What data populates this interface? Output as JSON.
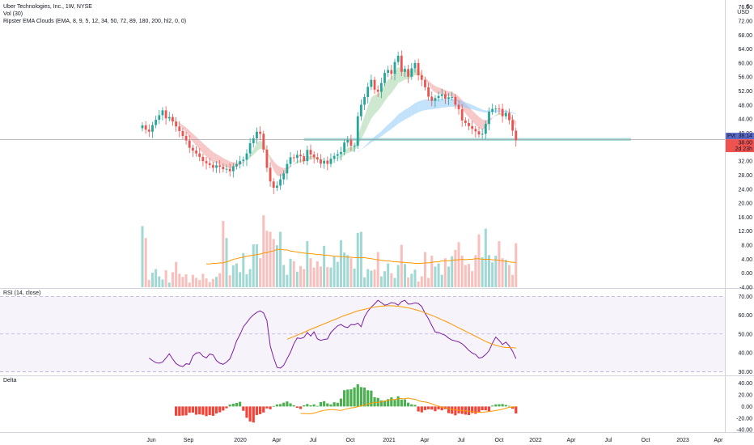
{
  "legend": {
    "title": "Uber Technologies, Inc., 1W, NYSE",
    "vol": "Vol (30)",
    "ema": "Ripster EMA Clouds (EMA, 8, 9, 5, 12, 34, 50, 72, 89, 180, 200, hl2, 0, 0)"
  },
  "currency": {
    "symbol": "€",
    "code": "USD"
  },
  "price_badges": {
    "pivot_label": "Pvt",
    "pivot_value": "38.14",
    "last_price": "38.00",
    "countdown": "2d 23h"
  },
  "colors": {
    "up": "#26a69a",
    "down": "#ef5350",
    "rsi_line": "#7b1fa2",
    "ma_line": "#ff9800",
    "pivot_badge": "#5b6ac9",
    "green_cloud": "#a5d6a7",
    "red_cloud": "#ef9a9a",
    "blue_cloud": "#90caf9"
  },
  "chart_data": [
    {
      "type": "candlestick",
      "title": "Uber Technologies, Inc., 1W, NYSE",
      "ylim": [
        -4,
        78
      ],
      "y_ticks": [
        "76.00",
        "72.00",
        "68.00",
        "64.00",
        "60.00",
        "56.00",
        "52.00",
        "48.00",
        "44.00",
        "40.00",
        "36.00",
        "32.00",
        "28.00",
        "24.00",
        "20.00",
        "16.00",
        "12.00",
        "8.00",
        "4.00",
        "0.00",
        "-4.00"
      ],
      "x_ticks": [
        "Jun",
        "Sep",
        "2020",
        "Apr",
        "Jul",
        "Oct",
        "2021",
        "Apr",
        "Jul",
        "Oct",
        "2022",
        "Apr",
        "Jul",
        "Oct",
        "2023",
        "Apr"
      ],
      "close": [
        42.2,
        41.0,
        40.4,
        42.3,
        43.8,
        45.1,
        46.5,
        44.2,
        44.6,
        43.3,
        41.9,
        40.6,
        39.2,
        37.9,
        35.8,
        35.0,
        34.2,
        33.2,
        32.0,
        31.4,
        30.9,
        30.1,
        30.8,
        30.4,
        29.7,
        29.8,
        29.1,
        30.5,
        31.1,
        32.0,
        32.4,
        34.2,
        37.1,
        38.5,
        40.4,
        39.8,
        35.3,
        30.1,
        26.2,
        24.4,
        25.0,
        26.8,
        28.5,
        31.2,
        33.1,
        32.9,
        33.8,
        33.4,
        32.0,
        35.2,
        33.9,
        33.1,
        32.5,
        31.3,
        32.1,
        31.2,
        32.7,
        33.5,
        34.0,
        34.6,
        37.3,
        38.0,
        36.4,
        36.4,
        44.8,
        48.1,
        50.3,
        53.2,
        55.2,
        52.4,
        51.8,
        54.3,
        57.2,
        58.0,
        56.9,
        60.3,
        62.1,
        57.5,
        58.3,
        56.1,
        58.5,
        60.0,
        56.5,
        55.2,
        53.1,
        50.4,
        49.2,
        50.0,
        50.6,
        51.1,
        49.8,
        50.2,
        50.3,
        48.1,
        46.8,
        43.6,
        42.9,
        42.0,
        41.2,
        40.5,
        39.6,
        39.8,
        42.6,
        46.1,
        46.9,
        47.0,
        46.9,
        44.8,
        45.8,
        43.7,
        40.7,
        38.0
      ],
      "volume": [
        11.8,
        9.5,
        1.4,
        2.8,
        3.5,
        2.1,
        1.5,
        3.3,
        0.9,
        2.9,
        4.9,
        2.6,
        2.0,
        2.5,
        0.9,
        2.4,
        1.8,
        1.4,
        2.6,
        1.7,
        1.0,
        1.6,
        2.0,
        2.7,
        12.8,
        9.5,
        2.3,
        4.2,
        4.6,
        2.9,
        6.6,
        2.5,
        3.5,
        8.3,
        8.3,
        5.6,
        13.9,
        10.9,
        10.7,
        9.3,
        8.1,
        10.7,
        4.3,
        2.4,
        5.5,
        5.0,
        3.0,
        4.1,
        3.5,
        8.9,
        5.6,
        3.8,
        5.0,
        4.0,
        8.0,
        3.9,
        3.8,
        5.9,
        4.9,
        9.1,
        6.7,
        6.2,
        5.6,
        3.6,
        10.5,
        10.7,
        1.9,
        3.5,
        3.2,
        3.4,
        6.8,
        2.1,
        3.1,
        4.6,
        2.7,
        1.8,
        4.3,
        8.2,
        4.5,
        1.9,
        2.6,
        3.4,
        1.1,
        2.1,
        6.8,
        1.8,
        6.1,
        4.0,
        4.6,
        2.4,
        5.6,
        4.0,
        6.0,
        7.2,
        8.7,
        6.1,
        4.3,
        4.5,
        3.1,
        6.2,
        10.2,
        5.8,
        11.3,
        6.2,
        4.8,
        6.1,
        8.9,
        5.6,
        5.3,
        4.3,
        2.4,
        8.5
      ],
      "volume_ma": [
        4.5,
        4.5,
        4.6,
        4.6,
        4.7,
        4.7,
        4.9,
        5.1,
        5.4,
        5.5,
        5.7,
        5.8,
        6.0,
        6.1,
        6.2,
        6.3,
        6.4,
        6.6,
        6.7,
        6.9,
        7.0,
        7.3,
        7.3,
        7.2,
        7.2,
        7.0,
        6.9,
        6.8,
        6.7,
        6.6,
        6.5,
        6.5,
        6.4,
        6.3,
        6.3,
        6.2,
        6.2,
        6.1,
        6.0,
        6.0,
        5.9,
        5.9,
        5.8,
        5.8,
        5.7,
        5.7,
        5.7,
        5.7,
        5.6,
        5.5,
        5.4,
        5.3,
        5.2,
        5.1,
        5.1,
        5.0,
        4.9,
        4.9,
        4.8,
        4.8,
        4.7,
        4.7,
        4.6,
        4.6,
        4.6,
        4.7,
        4.7,
        4.8,
        4.9,
        4.9,
        5.1,
        5.1,
        5.1,
        5.2,
        5.3,
        5.3,
        5.4,
        5.3,
        5.4,
        5.4,
        5.5,
        5.5,
        5.4,
        5.4,
        5.4,
        5.3,
        5.3,
        5.2,
        5.1,
        5.0,
        4.9,
        4.8,
        4.8
      ],
      "pivot_zone": [
        37.8,
        38.6
      ]
    },
    {
      "type": "line",
      "title": "RSI (14, close)",
      "ylim": [
        28,
        74
      ],
      "y_ticks": [
        "70.00",
        "60.00",
        "50.00",
        "40.00",
        "30.00"
      ],
      "bands": [
        30,
        50,
        70
      ],
      "series": [
        {
          "values": [
            37.2,
            35.9,
            34.8,
            34.5,
            35.1,
            37.2,
            39.5,
            36.7,
            34.3,
            33.2,
            32.7,
            34.2,
            33.9,
            38.3,
            39.9,
            40.2,
            38.2,
            37.3,
            39.4,
            38.9,
            35.9,
            34.5,
            33.9,
            35.1,
            36.8,
            41.2,
            46.4,
            49.7,
            53.8,
            56.1,
            58.4,
            60.2,
            61.5,
            62.3,
            61.2,
            57.1,
            43.6,
            37.4,
            32.3,
            31.9,
            33.4,
            36.9,
            40.3,
            44.8,
            47.9,
            47.6,
            48.2,
            50.8,
            48.9,
            51.2,
            47.4,
            46.6,
            47.1,
            47.4,
            50.8,
            52.6,
            54.3,
            55.1,
            53.9,
            53.4,
            55.1,
            54.9,
            55.8,
            53.9,
            59.1,
            62.1,
            64.3,
            66.0,
            67.9,
            66.7,
            65.3,
            65.8,
            66.7,
            66.4,
            65.3,
            67.2,
            67.9,
            65.9,
            66.0,
            66.6,
            66.2,
            64.6,
            61.0,
            58.1,
            54.5,
            51.1,
            50.8,
            50.0,
            49.3,
            47.8,
            46.8,
            46.3,
            45.8,
            44.8,
            43.2,
            41.3,
            39.9,
            39.1,
            37.2,
            37.6,
            39.1,
            41.1,
            45.1,
            48.4,
            46.6,
            44.4,
            45.7,
            43.7,
            40.8,
            36.9
          ]
        },
        {
          "values": [
            47.2,
            47.9,
            48.6,
            49.4,
            50.1,
            50.9,
            51.7,
            52.5,
            53.2,
            53.9,
            54.7,
            55.4,
            56.1,
            56.9,
            57.6,
            58.3,
            59.1,
            59.8,
            60.4,
            61.0,
            61.7,
            62.3,
            62.7,
            63.1,
            63.6,
            64.0,
            64.3,
            64.6,
            64.8,
            64.9,
            65.0,
            65.0,
            64.9,
            64.7,
            64.5,
            64.2,
            63.9,
            63.5,
            63.0,
            62.5,
            62.0,
            61.3,
            60.6,
            59.9,
            59.2,
            58.4,
            57.6,
            56.8,
            56.0,
            55.1,
            54.2,
            53.3,
            52.4,
            51.5,
            50.6,
            49.7,
            48.8,
            47.9,
            47.0,
            46.1,
            45.3,
            44.6,
            44.0,
            43.5,
            43.1,
            42.9,
            42.8,
            42.7,
            42.6
          ]
        }
      ]
    },
    {
      "type": "bar",
      "title": "Delta",
      "ylim": [
        -44,
        52
      ],
      "y_ticks": [
        "40.00",
        "20.00",
        "0.00",
        "-20.00",
        "-40.00"
      ],
      "values": [
        -15.9,
        -16.1,
        -15.6,
        -15.3,
        -10.8,
        -10.5,
        -14.1,
        -13.6,
        -14.4,
        -16.6,
        -14.8,
        -16.1,
        -12.1,
        -10.0,
        -7.0,
        -3.1,
        3.2,
        4.7,
        6.1,
        8.0,
        -7.4,
        -19.4,
        -25.8,
        -27.6,
        -14.7,
        -13.2,
        -10.4,
        -3.3,
        -4.8,
        0.7,
        3.5,
        4.1,
        6.5,
        8.6,
        5.5,
        2.1,
        -2.3,
        -4.3,
        2.1,
        4.3,
        2.0,
        3.6,
        1.0,
        7.5,
        9.1,
        5.3,
        3.5,
        7.2,
        6.4,
        13.6,
        28.0,
        29.1,
        29.5,
        32.7,
        38.1,
        33.3,
        32.6,
        27.9,
        27.3,
        15.8,
        14.8,
        10.4,
        10.0,
        12.6,
        15.6,
        11.3,
        17.5,
        11.8,
        12.0,
        6.5,
        3.7,
        2.7,
        -8.6,
        -10.2,
        -6.2,
        -4.9,
        -5.4,
        -8.1,
        -4.9,
        -6.6,
        -4.6,
        -11.5,
        -12.6,
        -15.2,
        -11.8,
        -12.8,
        -14.0,
        -14.8,
        -11.3,
        -12.7,
        -10.1,
        -6.5,
        -6.6,
        -9.3,
        1.5,
        3.6,
        3.8,
        4.2,
        2.6,
        1.0,
        -3.9,
        -12.1
      ],
      "ma": [
        -12.0,
        -12.2,
        -12.6,
        -12.5,
        -11.5,
        -9.8,
        -8.0,
        -6.7,
        -5.9,
        -5.4,
        -5.4,
        -6.5,
        -6.7,
        -5.3,
        -3.9,
        -2.5,
        -1.9,
        -0.3,
        1.1,
        2.2,
        4.5,
        5.4,
        7.1,
        6.6,
        8.1,
        9.2,
        10.5,
        11.6,
        12.0,
        13.4,
        13.8,
        13.0,
        14.6,
        13.1,
        12.4,
        10.1,
        8.4,
        7.8,
        6.4,
        4.5,
        2.3,
        0.6,
        -1.1,
        -2.3,
        -3.9,
        -5.1,
        -5.9,
        -6.7,
        -7.0,
        -7.4,
        -8.1,
        -9.0,
        -9.8,
        -10.1,
        -10.1,
        -9.4,
        -8.6,
        -8.0,
        -7.0,
        -5.9,
        -4.7,
        -3.0,
        -1.5,
        -1.0,
        -0.3
      ]
    }
  ]
}
